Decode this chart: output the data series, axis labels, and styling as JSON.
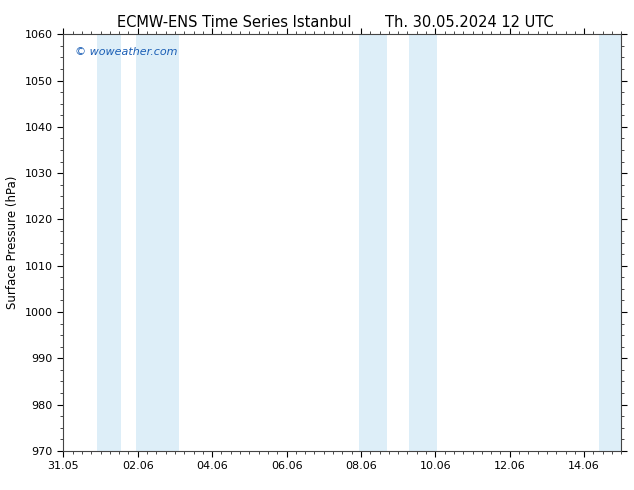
{
  "title_left": "ECMW-ENS Time Series Istanbul",
  "title_right": "Th. 30.05.2024 12 UTC",
  "ylabel": "Surface Pressure (hPa)",
  "ylim": [
    970,
    1060
  ],
  "yticks": [
    970,
    980,
    990,
    1000,
    1010,
    1020,
    1030,
    1040,
    1050,
    1060
  ],
  "xlim": [
    0,
    15.0
  ],
  "xtick_labels": [
    "31.05",
    "02.06",
    "04.06",
    "06.06",
    "08.06",
    "10.06",
    "12.06",
    "14.06"
  ],
  "xtick_positions": [
    0,
    2,
    4,
    6,
    8,
    10,
    12,
    14
  ],
  "shaded_bands": [
    {
      "x_start": 0.9,
      "x_end": 1.55,
      "color": "#ddeef8"
    },
    {
      "x_start": 1.95,
      "x_end": 3.1,
      "color": "#ddeef8"
    },
    {
      "x_start": 7.95,
      "x_end": 8.7,
      "color": "#ddeef8"
    },
    {
      "x_start": 9.3,
      "x_end": 10.05,
      "color": "#ddeef8"
    },
    {
      "x_start": 14.4,
      "x_end": 15.0,
      "color": "#ddeef8"
    }
  ],
  "watermark_text": "© woweather.com",
  "watermark_color": "#1a5eb5",
  "watermark_fontsize": 8.0,
  "background_color": "#ffffff",
  "plot_bg_color": "#ffffff",
  "title_fontsize": 10.5,
  "axis_fontsize": 8.5,
  "tick_fontsize": 8.0,
  "spine_color": "#444444"
}
